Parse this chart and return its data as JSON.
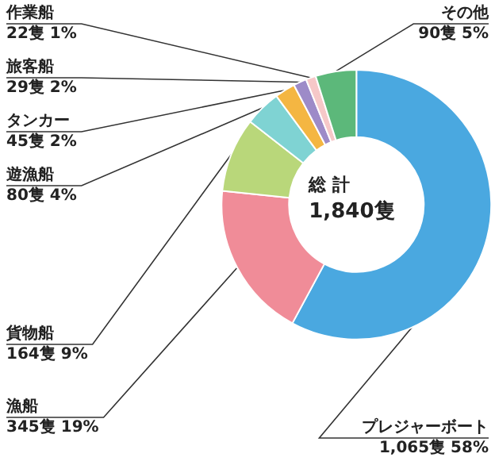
{
  "chart_data": {
    "type": "donut",
    "categories": [
      "プレジャーボート",
      "漁船",
      "貨物船",
      "遊漁船",
      "タンカー",
      "旅客船",
      "作業船",
      "その他"
    ],
    "values": [
      1065,
      345,
      164,
      80,
      45,
      29,
      22,
      90
    ],
    "value_labels": [
      "1,065隻 58%",
      "345隻 19%",
      "164隻 9%",
      "80隻 4%",
      "45隻 2%",
      "29隻 2%",
      "22隻 1%",
      "90隻 5%"
    ],
    "colors": [
      "#4aa8e0",
      "#f08c98",
      "#b9d77a",
      "#7fd3d3",
      "#f4b642",
      "#9d8bc8",
      "#f6c8c8",
      "#5cb87a"
    ],
    "annotations": [
      "総 計",
      "1,840隻"
    ],
    "legend": false
  }
}
